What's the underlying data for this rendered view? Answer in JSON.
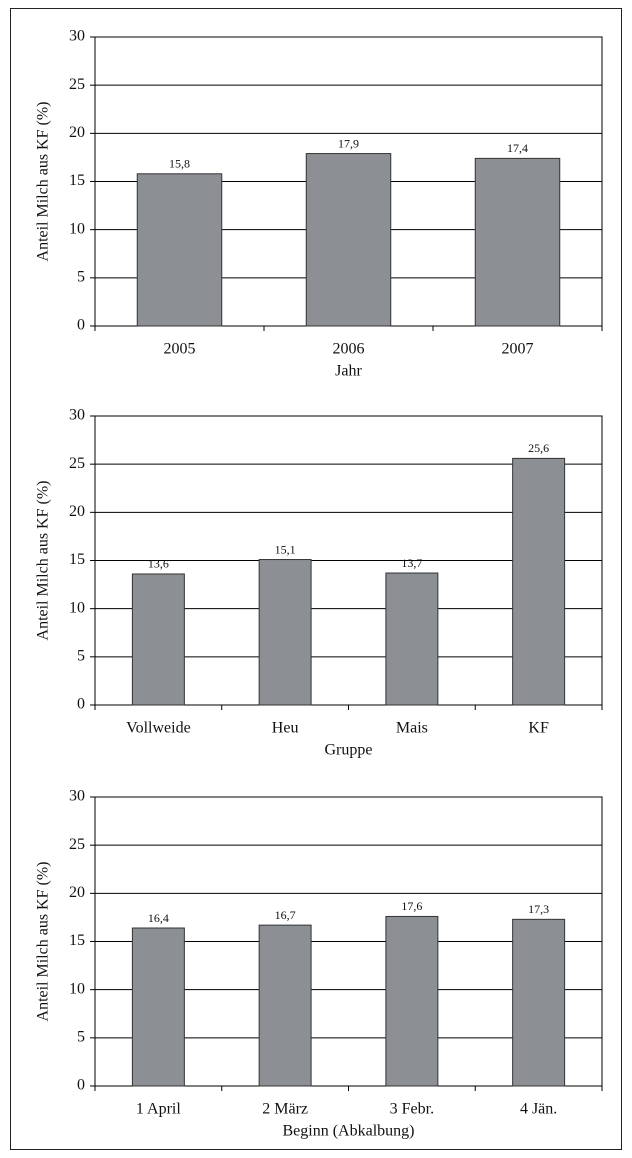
{
  "chart_data": [
    {
      "type": "bar",
      "y_label": "Anteil Milch aus KF  (%)",
      "x_label": "Jahr",
      "categories": [
        "2005",
        "2006",
        "2007"
      ],
      "values": [
        15.8,
        17.9,
        17.4
      ],
      "value_labels": [
        "15,8",
        "17,9",
        "17,4"
      ],
      "color": "#8c8f94",
      "ylim": [
        0,
        30
      ],
      "yticks": [
        0,
        5,
        10,
        15,
        20,
        25,
        30
      ],
      "grid": true
    },
    {
      "type": "bar",
      "y_label": "Anteil Milch aus KF  (%)",
      "x_label": "Gruppe",
      "categories": [
        "Vollweide",
        "Heu",
        "Mais",
        "KF"
      ],
      "values": [
        13.6,
        15.1,
        13.7,
        25.6
      ],
      "value_labels": [
        "13,6",
        "15,1",
        "13,7",
        "25,6"
      ],
      "color": "#8c8f94",
      "ylim": [
        0,
        30
      ],
      "yticks": [
        0,
        5,
        10,
        15,
        20,
        25,
        30
      ],
      "grid": true
    },
    {
      "type": "bar",
      "y_label": "Anteil Milch aus KF  (%)",
      "x_label": "Beginn (Abkalbung)",
      "categories": [
        "1 April",
        "2 März",
        "3 Febr.",
        "4 Jän."
      ],
      "values": [
        16.4,
        16.7,
        17.6,
        17.3
      ],
      "value_labels": [
        "16,4",
        "16,7",
        "17,6",
        "17,3"
      ],
      "color": "#8c8f94",
      "ylim": [
        0,
        30
      ],
      "yticks": [
        0,
        5,
        10,
        15,
        20,
        25,
        30
      ],
      "grid": true
    }
  ]
}
